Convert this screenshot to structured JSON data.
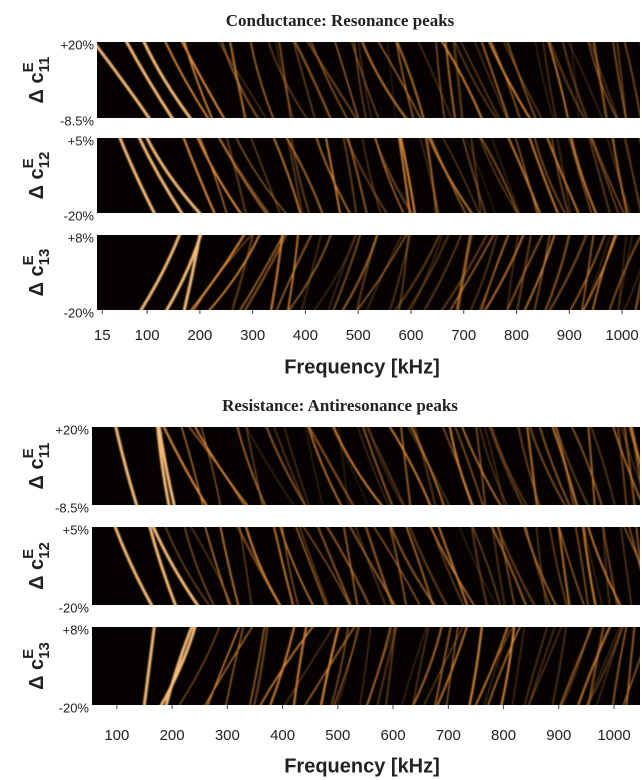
{
  "chart_data": [
    {
      "type": "heatmap",
      "title": "Conductance: Resonance peaks",
      "xlabel": "Frequency [kHz]",
      "xlim": [
        5,
        1034
      ],
      "xticks": [
        15,
        100,
        200,
        300,
        400,
        500,
        600,
        700,
        800,
        900,
        1000
      ],
      "panels": [
        {
          "ylabel": {
            "symbol": "Δ c",
            "sup": "E",
            "sub": "11"
          },
          "ytop": "+20%",
          "ybottom": "-8.5%"
        },
        {
          "ylabel": {
            "symbol": "Δ c",
            "sup": "E",
            "sub": "12"
          },
          "ytop": "+5%",
          "ybottom": "-20%"
        },
        {
          "ylabel": {
            "symbol": "Δ c",
            "sup": "E",
            "sub": "13"
          },
          "ytop": "+8%",
          "ybottom": "-20%"
        }
      ]
    },
    {
      "type": "heatmap",
      "title": "Resistance: Antiresonance peaks",
      "xlabel": "Frequency [kHz]",
      "xlim": [
        55,
        1047
      ],
      "xticks": [
        100,
        200,
        300,
        400,
        500,
        600,
        700,
        800,
        900,
        1000
      ],
      "panels": [
        {
          "ylabel": {
            "symbol": "Δ c",
            "sup": "E",
            "sub": "11"
          },
          "ytop": "+20%",
          "ybottom": "-8.5%"
        },
        {
          "ylabel": {
            "symbol": "Δ c",
            "sup": "E",
            "sub": "12"
          },
          "ytop": "+5%",
          "ybottom": "-20%"
        },
        {
          "ylabel": {
            "symbol": "Δ c",
            "sup": "E",
            "sub": "13"
          },
          "ytop": "+8%",
          "ybottom": "-20%"
        }
      ]
    }
  ]
}
